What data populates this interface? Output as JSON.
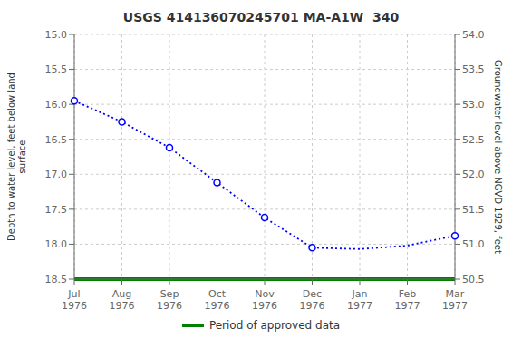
{
  "chart_data": {
    "type": "line",
    "title": "USGS 414136070245701 MA-A1W  340",
    "categories": [
      "Jul\n1976",
      "Aug\n1976",
      "Sep\n1976",
      "Oct\n1976",
      "Nov\n1976",
      "Dec\n1976",
      "Jan\n1977",
      "Feb\n1977",
      "Mar\n1977"
    ],
    "series": [
      {
        "type": "line",
        "color": "#0000ff",
        "line_style": "dotted",
        "marker": "none",
        "values": [
          15.95,
          16.25,
          16.62,
          17.12,
          17.62,
          18.05,
          18.07,
          18.02,
          17.88
        ]
      },
      {
        "type": "scatter",
        "color": "#0000ff",
        "marker": "circle",
        "values": [
          15.95,
          16.25,
          16.62,
          17.12,
          17.62,
          18.05,
          null,
          null,
          17.88
        ]
      },
      {
        "type": "hline",
        "name": "Period of approved data",
        "color": "#008000",
        "y": 18.5
      }
    ],
    "ylabel": "Depth to water level, feet below land\nsurface",
    "y2label": "Groundwater level above NGVD 1929, feet",
    "ylim": [
      18.5,
      15.0
    ],
    "yticks": [
      {
        "value": 15.0,
        "label": "15.0"
      },
      15.5,
      {
        "value": 16.0,
        "label": "16.0"
      },
      16.5,
      {
        "value": 17.0,
        "label": "17.0"
      },
      17.5,
      {
        "value": 18.0,
        "label": "18.0"
      },
      18.5
    ],
    "y2lim": [
      50.5,
      54.0
    ],
    "y2ticks": [
      {
        "value": 54.0,
        "label": "54.0"
      },
      53.5,
      {
        "value": 53.0,
        "label": "53.0"
      },
      52.5,
      {
        "value": 52.0,
        "label": "52.0"
      },
      51.5,
      {
        "value": 51.0,
        "label": "51.0"
      },
      50.5
    ],
    "grid": true,
    "legend": "bottom"
  }
}
